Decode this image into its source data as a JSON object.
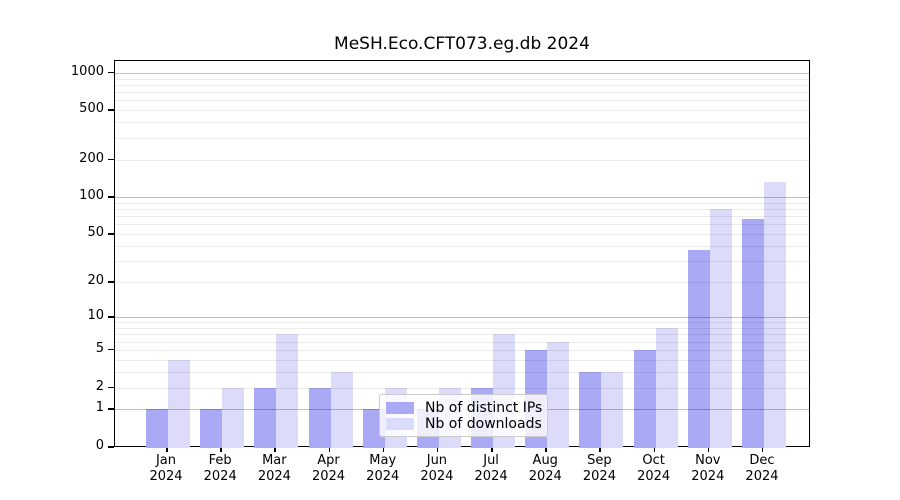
{
  "chart_data": {
    "type": "bar",
    "title": "MeSH.Eco.CFT073.eg.db 2024",
    "categories": [
      "Jan",
      "Feb",
      "Mar",
      "Apr",
      "May",
      "Jun",
      "Jul",
      "Aug",
      "Sep",
      "Oct",
      "Nov",
      "Dec"
    ],
    "year_label": "2024",
    "series": [
      {
        "name": "Nb of distinct IPs",
        "color": "#a9a9f5",
        "values": [
          1,
          1,
          2,
          2,
          1,
          1,
          2,
          5,
          3,
          5,
          37,
          66
        ]
      },
      {
        "name": "Nb of downloads",
        "color": "#dcdcfa",
        "values": [
          4,
          2,
          7,
          3,
          2,
          2,
          7,
          6,
          3,
          8,
          80,
          132
        ]
      }
    ],
    "xlabel": "",
    "ylabel": "",
    "y_scale": "log10(value+1), 0 at baseline",
    "y_tick_labels": [
      "0",
      "1",
      "2",
      "5",
      "10",
      "20",
      "50",
      "100",
      "200",
      "500",
      "1000"
    ],
    "y_ticks": [
      0,
      1,
      2,
      5,
      10,
      20,
      50,
      100,
      200,
      500,
      1000
    ],
    "y_major_grid": [
      1,
      10,
      100,
      1000
    ],
    "y_minor_grid": [
      3,
      4,
      6,
      7,
      8,
      9,
      30,
      40,
      60,
      70,
      80,
      90,
      300,
      400,
      600,
      700,
      800,
      900
    ],
    "ylim": [
      0,
      1200
    ],
    "grid": "on",
    "legend_position": "lower center-left inside plot"
  },
  "colors": {
    "distinct_ips_bar": "#a9a9f5",
    "downloads_bar": "#dcdcfa",
    "major_grid": "#c2c2c2",
    "minor_grid": "#e9e9e9",
    "axis": "#000000",
    "background": "#ffffff"
  }
}
